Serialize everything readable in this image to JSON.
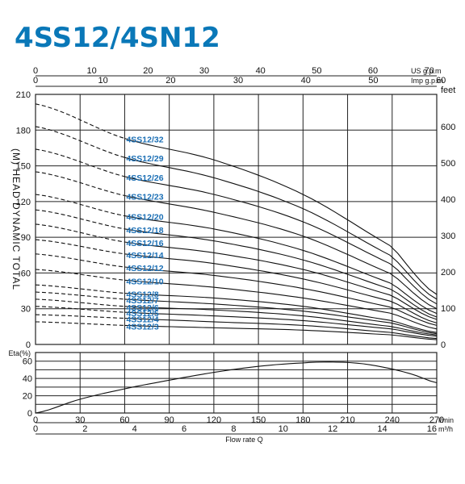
{
  "header": {
    "title": "4SS12/4SN12"
  },
  "chart_data": [
    {
      "type": "line",
      "name": "head",
      "y_left_label": "(M) HEAD DYNAMIC TOTAL",
      "y_left_ticks": [
        0,
        30,
        60,
        90,
        120,
        150,
        180,
        210
      ],
      "y_left_lim": [
        0,
        210
      ],
      "y_right_unit": "feet",
      "y_right_ticks": [
        0,
        100,
        200,
        300,
        400,
        500,
        600
      ],
      "top_axis_us": {
        "unit": "US g.p.m",
        "ticks": [
          0,
          10,
          20,
          30,
          40,
          50,
          60,
          70
        ]
      },
      "top_axis_imp": {
        "unit": "Imp g.p.m",
        "ticks": [
          0,
          10,
          20,
          30,
          40,
          50,
          60
        ]
      },
      "x_lim_lmin": [
        0,
        270
      ],
      "operating_range_lmin": [
        60,
        270
      ],
      "grid": true,
      "series": [
        {
          "name": "4SS12/32",
          "x": [
            0,
            60,
            120,
            180,
            240,
            270
          ],
          "y": [
            202,
            173,
            155,
            126,
            82,
            42
          ]
        },
        {
          "name": "4SS12/29",
          "x": [
            0,
            60,
            120,
            180,
            240,
            270
          ],
          "y": [
            183,
            157,
            140,
            114,
            74,
            38
          ]
        },
        {
          "name": "4SS12/26",
          "x": [
            0,
            60,
            120,
            180,
            240,
            270
          ],
          "y": [
            164,
            141,
            126,
            103,
            67,
            34
          ]
        },
        {
          "name": "4SS12/23",
          "x": [
            0,
            60,
            120,
            180,
            240,
            270
          ],
          "y": [
            145,
            125,
            111,
            91,
            59,
            30
          ]
        },
        {
          "name": "4SS12/20",
          "x": [
            0,
            60,
            120,
            180,
            240,
            270
          ],
          "y": [
            126,
            108,
            97,
            79,
            51,
            26
          ]
        },
        {
          "name": "4SS12/18",
          "x": [
            0,
            60,
            120,
            180,
            240,
            270
          ],
          "y": [
            113,
            97,
            87,
            71,
            46,
            23
          ]
        },
        {
          "name": "4SS12/16",
          "x": [
            0,
            60,
            120,
            180,
            240,
            270
          ],
          "y": [
            101,
            86,
            77,
            63,
            41,
            21
          ]
        },
        {
          "name": "4SS12/14",
          "x": [
            0,
            60,
            120,
            180,
            240,
            270
          ],
          "y": [
            88,
            76,
            68,
            55,
            36,
            18
          ]
        },
        {
          "name": "4SS12/12",
          "x": [
            0,
            60,
            120,
            180,
            240,
            270
          ],
          "y": [
            76,
            65,
            58,
            47,
            31,
            16
          ]
        },
        {
          "name": "4SS12/10",
          "x": [
            0,
            60,
            120,
            180,
            240,
            270
          ],
          "y": [
            63,
            54,
            48,
            39,
            26,
            13
          ]
        },
        {
          "name": "4SS12/8",
          "x": [
            0,
            60,
            120,
            180,
            240,
            270
          ],
          "y": [
            50,
            43,
            39,
            32,
            20,
            10
          ]
        },
        {
          "name": "4SS12/7",
          "x": [
            0,
            60,
            120,
            180,
            240,
            270
          ],
          "y": [
            44,
            38,
            34,
            28,
            18,
            9
          ]
        },
        {
          "name": "4SS12/6",
          "x": [
            0,
            60,
            120,
            180,
            240,
            270
          ],
          "y": [
            38,
            32,
            29,
            24,
            15,
            8
          ]
        },
        {
          "name": "4SS12/5",
          "x": [
            0,
            60,
            120,
            180,
            240,
            270
          ],
          "y": [
            32,
            27,
            24,
            20,
            13,
            7
          ]
        },
        {
          "name": "4SS12/4",
          "x": [
            0,
            60,
            120,
            180,
            240,
            270
          ],
          "y": [
            25,
            22,
            19,
            16,
            10,
            5
          ]
        },
        {
          "name": "4SS12/3",
          "x": [
            0,
            60,
            120,
            180,
            240,
            270
          ],
          "y": [
            19,
            16,
            14,
            12,
            8,
            4
          ]
        }
      ]
    },
    {
      "type": "line",
      "name": "efficiency",
      "ylabel": "Eta(%)",
      "y_ticks": [
        0,
        20,
        40,
        60
      ],
      "ylim": [
        0,
        70
      ],
      "x_label": "Flow rate  Q",
      "x_ticks_lmin": [
        0,
        30,
        60,
        90,
        120,
        150,
        180,
        210,
        240,
        270
      ],
      "x_unit_lmin": "l/min",
      "x_ticks_m3h": [
        0,
        2,
        4,
        6,
        8,
        10,
        12,
        14,
        16
      ],
      "x_unit_m3h": "m³/h",
      "grid": true,
      "series": [
        {
          "x": [
            0,
            30,
            60,
            90,
            120,
            150,
            180,
            200,
            220,
            240,
            255,
            270
          ],
          "y": [
            0,
            16,
            28,
            38,
            47,
            54,
            58,
            59,
            57,
            51,
            44,
            35
          ]
        }
      ]
    }
  ]
}
